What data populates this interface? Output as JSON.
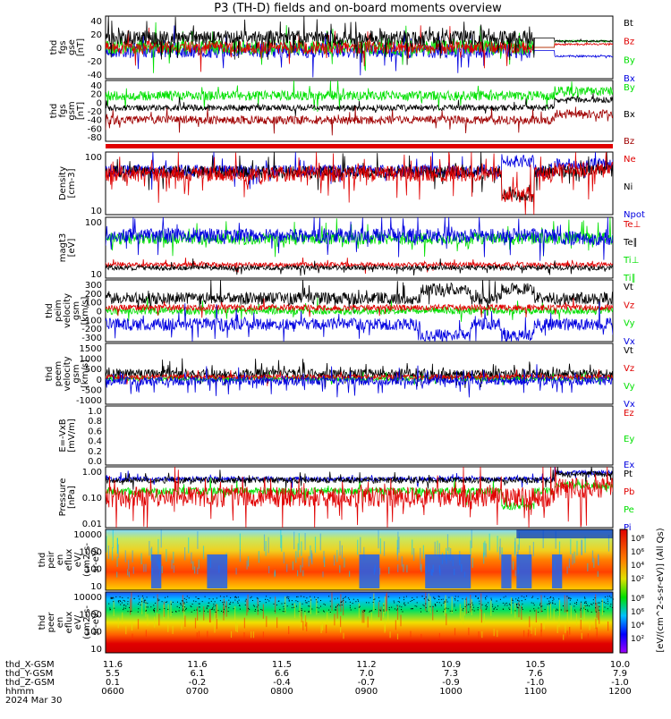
{
  "title": "P3 (TH-D) fields and on-board moments overview",
  "colors": {
    "black": "#000000",
    "red": "#e00000",
    "green": "#00e000",
    "blue": "#0000e0",
    "darkred": "#a00000"
  },
  "panels": [
    {
      "ylabel": [
        "thd",
        "fgs",
        "gse",
        "[nT]"
      ],
      "ticks": [
        "40",
        "20",
        "0",
        "-20",
        "-40"
      ],
      "legend": [
        [
          "Bt",
          "black"
        ],
        [
          "Bz",
          "red"
        ],
        [
          "By",
          "green"
        ],
        [
          "Bx",
          "blue"
        ]
      ]
    },
    {
      "ylabel": [
        "thd",
        "fgs",
        "gsm",
        "[nT]"
      ],
      "ticks": [
        "40",
        "20",
        "0",
        "-20",
        "-40",
        "-60",
        "-80"
      ],
      "legend": [
        [
          "By",
          "green"
        ],
        [
          "Bx",
          "black"
        ],
        [
          "Bz",
          "darkred"
        ]
      ]
    },
    {
      "ylabel": [
        "Density",
        "[cm-3]"
      ],
      "ticks": [
        "100",
        "10"
      ],
      "legend": [
        [
          "Ne",
          "red"
        ],
        [
          "Ni",
          "black"
        ],
        [
          "Npot",
          "blue"
        ]
      ]
    },
    {
      "ylabel": [
        "magt3",
        "[eV]"
      ],
      "ticks": [
        "100",
        "10"
      ],
      "legend": [
        [
          "Te⊥",
          "red"
        ],
        [
          "Te∥",
          "black"
        ],
        [
          "Ti⊥",
          "green"
        ],
        [
          "Ti∥",
          "green"
        ]
      ]
    },
    {
      "ylabel": [
        "thd",
        "peim",
        "velocity",
        "gsm",
        "[km/s]"
      ],
      "ticks": [
        "300",
        "200",
        "100",
        "0",
        "-100",
        "-200",
        "-300"
      ],
      "legend": [
        [
          "Vt",
          "black"
        ],
        [
          "Vz",
          "red"
        ],
        [
          "Vy",
          "green"
        ],
        [
          "Vx",
          "blue"
        ]
      ]
    },
    {
      "ylabel": [
        "thd",
        "peem",
        "velocity",
        "gsm",
        "[km/s]"
      ],
      "ticks": [
        "1500",
        "1000",
        "500",
        "0",
        "-500",
        "-1000"
      ],
      "legend": [
        [
          "Vt",
          "black"
        ],
        [
          "Vz",
          "red"
        ],
        [
          "Vy",
          "green"
        ],
        [
          "Vx",
          "blue"
        ]
      ]
    },
    {
      "ylabel": [
        "E=-VxB",
        "[mV/m]"
      ],
      "ticks": [
        "1.0",
        "0.8",
        "0.6",
        "0.4",
        "0.2",
        "0.0"
      ],
      "legend": [
        [
          "Ez",
          "red"
        ],
        [
          "Ey",
          "green"
        ],
        [
          "Ex",
          "blue"
        ]
      ]
    },
    {
      "ylabel": [
        "Pressure",
        "[nPa]"
      ],
      "ticks": [
        "1.00",
        "0.10",
        "0.01"
      ],
      "legend": [
        [
          "Pt",
          "black"
        ],
        [
          "Pb",
          "red"
        ],
        [
          "Pe",
          "green"
        ],
        [
          "Pi",
          "blue"
        ]
      ]
    },
    {
      "ylabel": [
        "thd",
        "peir",
        "en",
        "eflux",
        "eV/",
        "(cm2-s-",
        "sr-eV)"
      ],
      "ticks": [
        "10000",
        "1000",
        "100",
        "10"
      ],
      "legend": []
    },
    {
      "ylabel": [
        "thd",
        "peer",
        "en",
        "eflux",
        "eV/",
        "(cm2-s-",
        "sr-eV)"
      ],
      "ticks": [
        "10000",
        "1000",
        "100",
        "10"
      ],
      "legend": []
    }
  ],
  "colorbar": {
    "label": "[eV/(cm^2-s-sr-eV)] (All Qs)",
    "ticks": [
      "10⁸",
      "10⁶",
      "10⁴",
      "10²"
    ]
  },
  "xaxis": {
    "row_labels": [
      "thd_X-GSM",
      "thd_Y-GSM",
      "thd_Z-GSM",
      "hhmm",
      "2024 Mar 30"
    ],
    "columns": [
      [
        "11.6",
        "5.5",
        "0.1",
        "0600"
      ],
      [
        "11.6",
        "6.1",
        "-0.2",
        "0700"
      ],
      [
        "11.5",
        "6.6",
        "-0.4",
        "0800"
      ],
      [
        "11.2",
        "7.0",
        "-0.7",
        "0900"
      ],
      [
        "10.9",
        "7.3",
        "-0.9",
        "1000"
      ],
      [
        "10.5",
        "7.6",
        "-1.0",
        "1100"
      ],
      [
        "10.0",
        "7.9",
        "-1.0",
        "1200"
      ]
    ]
  },
  "chart_data": {
    "type": "line",
    "title": "P3 (TH-D) fields and on-board moments overview",
    "x_range": [
      "2024-03-30 06:00",
      "2024-03-30 12:00"
    ],
    "series": [
      {
        "name": "Bt",
        "panel": "fgs gse",
        "approx_level": [
          20,
          40
        ],
        "units": "nT"
      },
      {
        "name": "Bz",
        "panel": "fgs gse",
        "approx_level": [
          0,
          20
        ],
        "units": "nT"
      },
      {
        "name": "By",
        "panel": "fgs gse",
        "approx_level": [
          -10,
          20
        ],
        "units": "nT"
      },
      {
        "name": "Bx",
        "panel": "fgs gse",
        "approx_level": [
          -20,
          0
        ],
        "units": "nT"
      },
      {
        "name": "By",
        "panel": "fgs gsm",
        "approx_level": [
          10,
          30
        ],
        "units": "nT"
      },
      {
        "name": "Bz",
        "panel": "fgs gsm",
        "approx_level": [
          -50,
          -30
        ],
        "units": "nT"
      },
      {
        "name": "Ne",
        "panel": "Density",
        "approx_level": [
          5,
          60
        ],
        "units": "cm-3"
      },
      {
        "name": "Npot",
        "panel": "Density",
        "approx_level": [
          10,
          100
        ],
        "units": "cm-3"
      },
      {
        "name": "Ti",
        "panel": "magt3",
        "approx_level": [
          100,
          200
        ],
        "units": "eV"
      },
      {
        "name": "Te",
        "panel": "magt3",
        "approx_level": [
          20,
          40
        ],
        "units": "eV"
      },
      {
        "name": "Pt",
        "panel": "Pressure",
        "approx_level": [
          0.1,
          1.0
        ],
        "units": "nPa"
      }
    ]
  }
}
